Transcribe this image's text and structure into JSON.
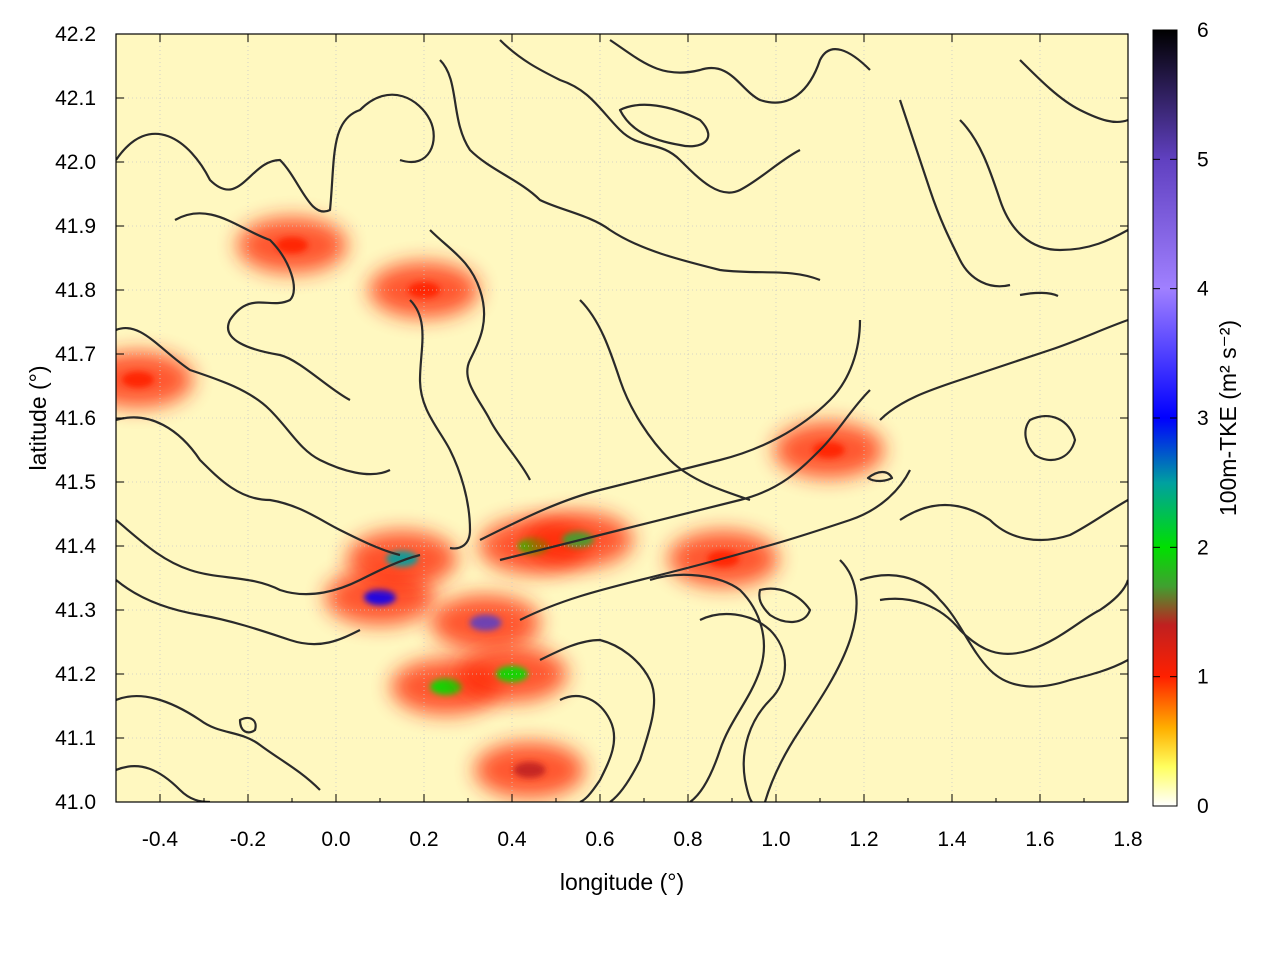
{
  "chart_data": {
    "type": "heatmap",
    "title": "",
    "xlabel": "longitude (°)",
    "ylabel": "latitude (°)",
    "colorbar_label": "100m-TKE (m² s⁻²)",
    "xlim": [
      -0.5,
      1.8
    ],
    "ylim": [
      41.0,
      42.2
    ],
    "zlim": [
      0,
      6
    ],
    "x_ticks": [
      "-0.4",
      "-0.2",
      "0.0",
      "0.2",
      "0.4",
      "0.6",
      "0.8",
      "1.0",
      "1.2",
      "1.4",
      "1.6",
      "1.8"
    ],
    "x_tick_values": [
      -0.4,
      -0.2,
      0.0,
      0.2,
      0.4,
      0.6,
      0.8,
      1.0,
      1.2,
      1.4,
      1.6,
      1.8
    ],
    "y_ticks": [
      "41.0",
      "41.1",
      "41.2",
      "41.3",
      "41.4",
      "41.5",
      "41.6",
      "41.7",
      "41.8",
      "41.9",
      "42.0",
      "42.1",
      "42.2"
    ],
    "y_tick_values": [
      41.0,
      41.1,
      41.2,
      41.3,
      41.4,
      41.5,
      41.6,
      41.7,
      41.8,
      41.9,
      42.0,
      42.1,
      42.2
    ],
    "colorbar_ticks": [
      "0",
      "1",
      "2",
      "3",
      "4",
      "5",
      "6"
    ],
    "colorbar_tick_values": [
      0,
      1,
      2,
      3,
      4,
      5,
      6
    ],
    "grid": true,
    "colormap": [
      {
        "value": 0.0,
        "color": "#ffffff"
      },
      {
        "value": 0.3,
        "color": "#ffff60"
      },
      {
        "value": 0.6,
        "color": "#ffb000"
      },
      {
        "value": 1.0,
        "color": "#ff2000"
      },
      {
        "value": 1.4,
        "color": "#c02020"
      },
      {
        "value": 1.7,
        "color": "#40a030"
      },
      {
        "value": 2.0,
        "color": "#00e000"
      },
      {
        "value": 2.5,
        "color": "#00a0a0"
      },
      {
        "value": 3.0,
        "color": "#0000ff"
      },
      {
        "value": 4.0,
        "color": "#a080ff"
      },
      {
        "value": 5.0,
        "color": "#6040c0"
      },
      {
        "value": 6.0,
        "color": "#000000"
      }
    ],
    "high_tke_regions": [
      {
        "lon": -0.45,
        "lat": 41.66,
        "tke": 1.2
      },
      {
        "lon": -0.1,
        "lat": 41.87,
        "tke": 1.0
      },
      {
        "lon": 0.1,
        "lat": 41.32,
        "tke": 3.2
      },
      {
        "lon": 0.15,
        "lat": 41.38,
        "tke": 2.8
      },
      {
        "lon": 0.25,
        "lat": 41.18,
        "tke": 2.2
      },
      {
        "lon": 0.34,
        "lat": 41.28,
        "tke": 5.5
      },
      {
        "lon": 0.45,
        "lat": 41.4,
        "tke": 2.0
      },
      {
        "lon": 0.55,
        "lat": 41.41,
        "tke": 1.8
      },
      {
        "lon": 0.4,
        "lat": 41.2,
        "tke": 2.4
      },
      {
        "lon": 0.44,
        "lat": 41.05,
        "tke": 1.5
      },
      {
        "lon": 0.88,
        "lat": 41.38,
        "tke": 1.0
      },
      {
        "lon": 1.12,
        "lat": 41.55,
        "tke": 1.1
      },
      {
        "lon": 0.2,
        "lat": 41.8,
        "tke": 1.0
      }
    ],
    "terrain_contours": "black elevation contour lines overlaid on the TKE field"
  }
}
